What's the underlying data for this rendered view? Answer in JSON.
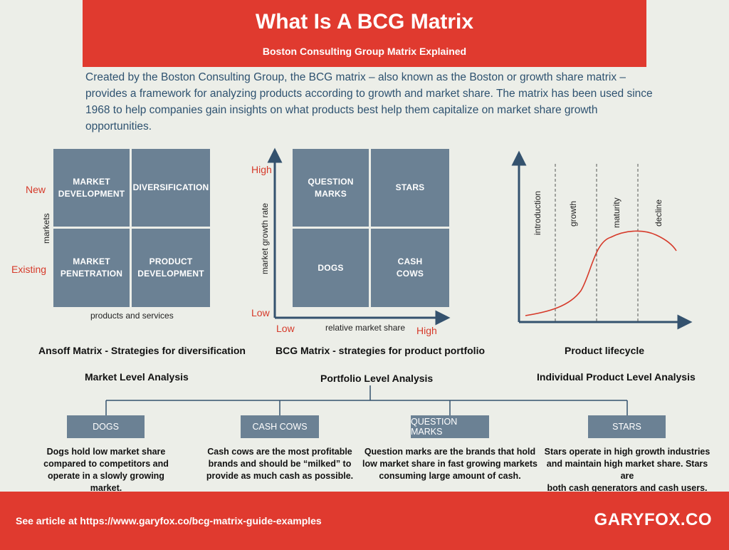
{
  "header": {
    "title": "What Is A BCG Matrix",
    "subtitle": "Boston Consulting Group Matrix Explained"
  },
  "intro": "Created by the Boston Consulting Group, the BCG matrix – also known as the Boston or growth share matrix – provides a framework for analyzing products according to growth and market share. The matrix has been used since 1968 to help companies gain insights on what products best help them capitalize on market share growth opportunities.",
  "ansoff": {
    "cells": {
      "market_development": "MARKET\nDEVELOPMENT",
      "diversification": "DIVERSIFICATION",
      "market_penetration": "MARKET\nPENETRATION",
      "product_development": "PRODUCT\nDEVELOPMENT"
    },
    "y_new": "New",
    "y_existing": "Existing",
    "y_axis": "markets",
    "x_axis": "products and services",
    "caption": "Ansoff Matrix - Strategies for diversification",
    "level": "Market Level Analysis"
  },
  "bcg": {
    "cells": {
      "question_marks": "QUESTION\nMARKS",
      "stars": "STARS",
      "dogs": "DOGS",
      "cash_cows": "CASH\nCOWS"
    },
    "y_high": "High",
    "y_low": "Low",
    "x_low": "Low",
    "x_high": "High",
    "y_axis": "market growth rate",
    "x_axis": "relative market share",
    "caption": "BCG Matrix - strategies for product portfolio",
    "level": "Portfolio Level Analysis"
  },
  "lifecycle": {
    "stages": [
      "introduction",
      "growth",
      "maturity",
      "decline"
    ],
    "caption": "Product lifecycle",
    "level": "Individual Product Level Analysis",
    "accent": "#d63a2a"
  },
  "categories": [
    {
      "label": "DOGS",
      "desc": "Dogs hold low market share\ncompared to competitors and\noperate in a slowly growing market."
    },
    {
      "label": "CASH COWS",
      "desc": "Cash cows are the most profitable\nbrands and should be “milked” to\nprovide as much cash as possible."
    },
    {
      "label": "QUESTION MARKS",
      "desc": "Question marks are the brands that hold\nlow market share in fast growing markets\nconsuming large amount of cash."
    },
    {
      "label": "STARS",
      "desc": "Stars operate in high growth industries\nand maintain high market share. Stars are\nboth cash generators and cash users."
    }
  ],
  "footer": {
    "link": "See article at https://www.garyfox.co/bcg-matrix-guide-examples",
    "brand": "GARYFOX.CO"
  },
  "colors": {
    "header_red": "#e03a2f",
    "box_slate": "#6b8194",
    "axis_navy": "#34526e",
    "background": "#eceee8"
  }
}
